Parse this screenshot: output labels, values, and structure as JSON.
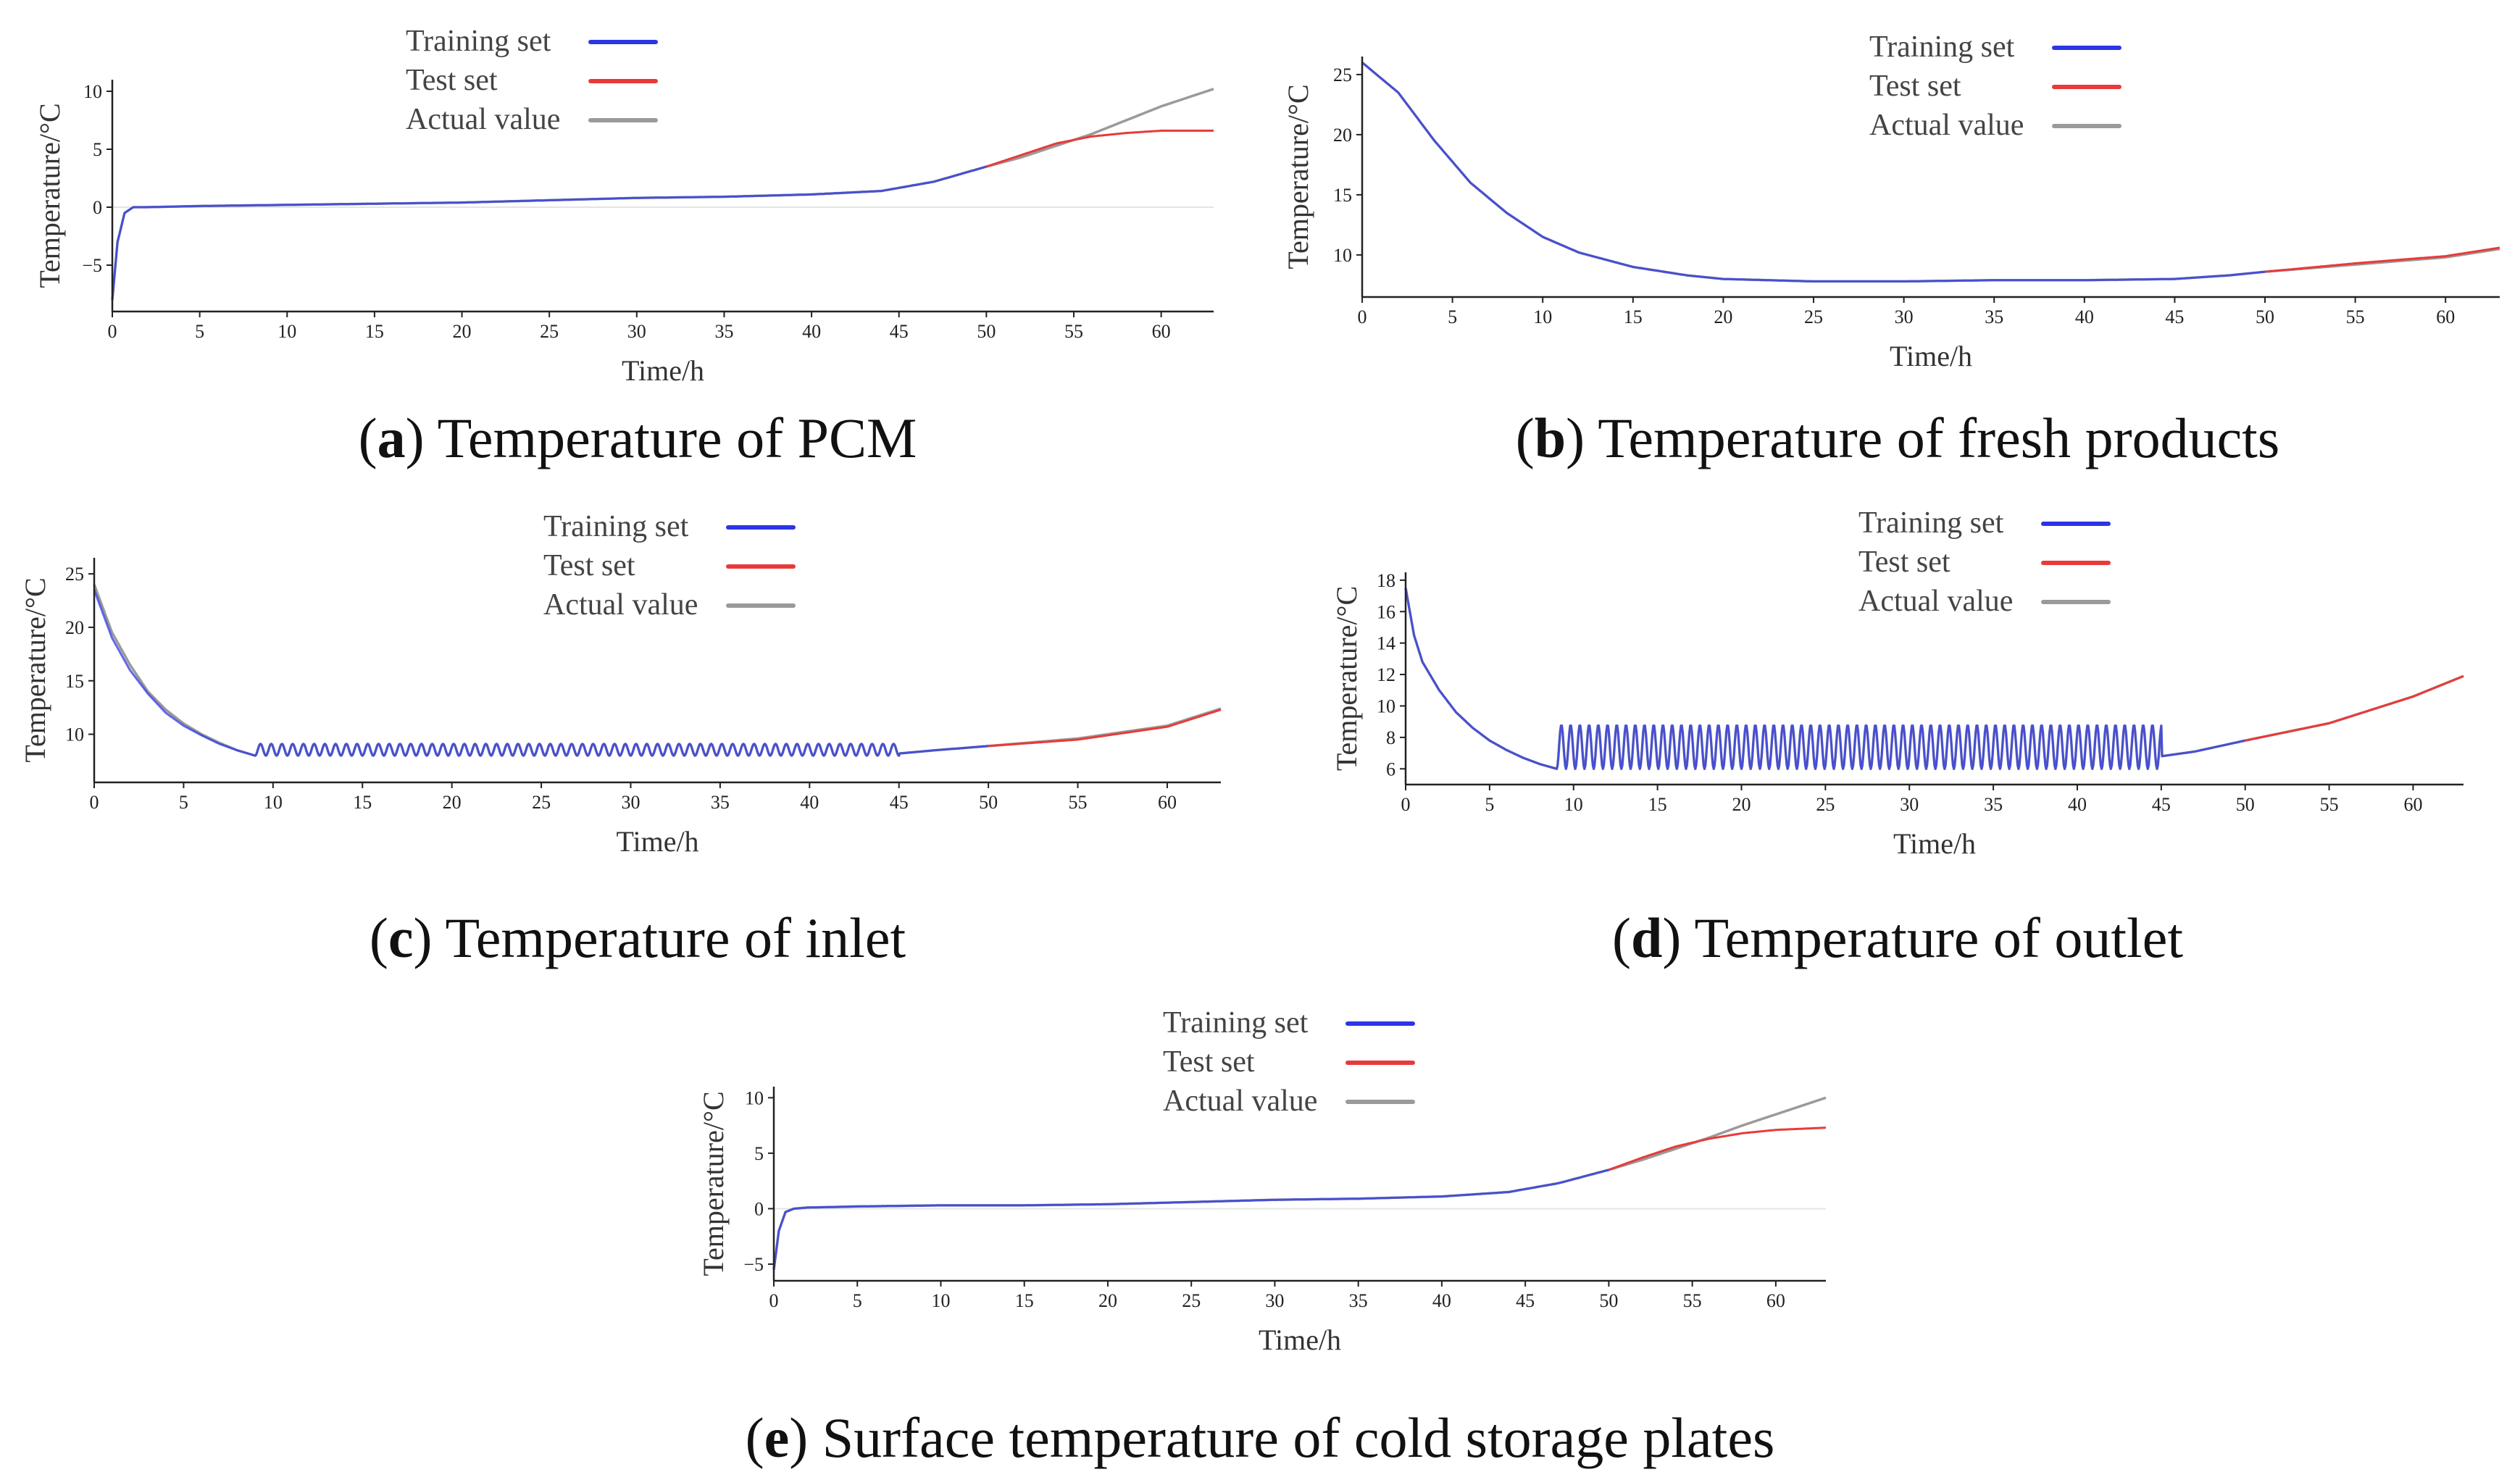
{
  "figure": {
    "panels": [
      {
        "id": "a",
        "caption_letter": "a",
        "caption_text": "Temperature of PCM",
        "chart_data": {
          "type": "line",
          "xlabel": "Time/h",
          "ylabel": "Temperature/°C",
          "xlim": [
            0,
            63
          ],
          "ylim": [
            -9,
            11
          ],
          "xticks": [
            0,
            5,
            10,
            15,
            20,
            25,
            30,
            35,
            40,
            45,
            50,
            55,
            60
          ],
          "yticks": [
            -5,
            0,
            5,
            10
          ],
          "ytick_labels": [
            "−5",
            "0",
            "5",
            "10"
          ],
          "zero_line": true,
          "legend": [
            "Training set",
            "Test set",
            "Actual value"
          ],
          "series": [
            {
              "name": "Actual value",
              "x": [
                0,
                0.3,
                0.7,
                1.2,
                2,
                5,
                10,
                15,
                20,
                25,
                30,
                35,
                40,
                44,
                47,
                50,
                52,
                54,
                56,
                58,
                60,
                63
              ],
              "values": [
                -8,
                -3,
                -0.5,
                0,
                0,
                0.1,
                0.2,
                0.3,
                0.4,
                0.6,
                0.8,
                0.9,
                1.1,
                1.4,
                2.2,
                3.5,
                4.3,
                5.3,
                6.3,
                7.5,
                8.7,
                10.2
              ]
            },
            {
              "name": "Training set",
              "x": [
                0,
                0.3,
                0.7,
                1.2,
                2,
                5,
                10,
                15,
                20,
                25,
                30,
                35,
                40,
                44,
                47,
                50
              ],
              "values": [
                -8,
                -3,
                -0.5,
                0,
                0,
                0.1,
                0.2,
                0.3,
                0.4,
                0.6,
                0.8,
                0.9,
                1.1,
                1.4,
                2.2,
                3.5
              ]
            },
            {
              "name": "Test set",
              "x": [
                50,
                52,
                54,
                56,
                58,
                60,
                63
              ],
              "values": [
                3.5,
                4.5,
                5.5,
                6.1,
                6.4,
                6.6,
                6.6
              ]
            }
          ]
        }
      },
      {
        "id": "b",
        "caption_letter": "b",
        "caption_text": "Temperature of fresh products",
        "chart_data": {
          "type": "line",
          "xlabel": "Time/h",
          "ylabel": "Temperature/°C",
          "xlim": [
            0,
            63
          ],
          "ylim": [
            6.5,
            26.5
          ],
          "xticks": [
            0,
            5,
            10,
            15,
            20,
            25,
            30,
            35,
            40,
            45,
            50,
            55,
            60
          ],
          "yticks": [
            10,
            15,
            20,
            25
          ],
          "ytick_labels": [
            "10",
            "15",
            "20",
            "25"
          ],
          "zero_line": false,
          "legend": [
            "Training set",
            "Test set",
            "Actual value"
          ],
          "series": [
            {
              "name": "Actual value",
              "x": [
                0,
                2,
                4,
                6,
                8,
                10,
                12,
                15,
                18,
                20,
                25,
                30,
                35,
                40,
                45,
                48,
                50,
                55,
                60,
                63
              ],
              "values": [
                26,
                23.5,
                19.5,
                16,
                13.5,
                11.5,
                10.2,
                9,
                8.3,
                8,
                7.8,
                7.8,
                7.9,
                7.9,
                8,
                8.3,
                8.6,
                9.2,
                9.8,
                10.5
              ]
            },
            {
              "name": "Training set",
              "x": [
                0,
                2,
                4,
                6,
                8,
                10,
                12,
                15,
                18,
                20,
                25,
                30,
                35,
                40,
                45,
                48,
                50
              ],
              "values": [
                26,
                23.5,
                19.5,
                16,
                13.5,
                11.5,
                10.2,
                9,
                8.3,
                8,
                7.8,
                7.8,
                7.9,
                7.9,
                8,
                8.3,
                8.6
              ]
            },
            {
              "name": "Test set",
              "x": [
                50,
                55,
                60,
                63
              ],
              "values": [
                8.6,
                9.3,
                9.9,
                10.6
              ]
            }
          ]
        }
      },
      {
        "id": "c",
        "caption_letter": "c",
        "caption_text": "Temperature of inlet",
        "chart_data": {
          "type": "line",
          "xlabel": "Time/h",
          "ylabel": "Temperature/°C",
          "xlim": [
            0,
            63
          ],
          "ylim": [
            5.5,
            26.5
          ],
          "xticks": [
            0,
            5,
            10,
            15,
            20,
            25,
            30,
            35,
            40,
            45,
            50,
            55,
            60
          ],
          "yticks": [
            10,
            15,
            20,
            25
          ],
          "ytick_labels": [
            "10",
            "15",
            "20",
            "25"
          ],
          "zero_line": false,
          "legend": [
            "Training set",
            "Test set",
            "Actual value"
          ],
          "oscillation": {
            "from": 9,
            "to": 45,
            "period": 0.6,
            "base": 8,
            "amplitude": 1.1
          },
          "series": [
            {
              "name": "Actual value",
              "x": [
                0,
                1,
                2,
                3,
                4,
                5,
                6,
                7,
                8,
                9,
                45,
                47,
                50,
                55,
                60,
                63
              ],
              "values": [
                24,
                19.5,
                16.5,
                14,
                12.3,
                11,
                10,
                9.2,
                8.5,
                8,
                8.2,
                8.5,
                8.9,
                9.6,
                10.8,
                12.4
              ]
            },
            {
              "name": "Training set",
              "x": [
                0,
                1,
                2,
                3,
                4,
                5,
                6,
                7,
                8,
                9,
                45,
                47,
                50
              ],
              "values": [
                23.5,
                19,
                16,
                13.8,
                12,
                10.8,
                9.9,
                9.1,
                8.5,
                8,
                8.2,
                8.5,
                8.9
              ]
            },
            {
              "name": "Test set",
              "x": [
                50,
                55,
                60,
                63
              ],
              "values": [
                8.9,
                9.5,
                10.7,
                12.3
              ]
            }
          ]
        }
      },
      {
        "id": "d",
        "caption_letter": "d",
        "caption_text": "Temperature of outlet",
        "chart_data": {
          "type": "line",
          "xlabel": "Time/h",
          "ylabel": "Temperature/°C",
          "xlim": [
            0,
            63
          ],
          "ylim": [
            5,
            18.5
          ],
          "xticks": [
            0,
            5,
            10,
            15,
            20,
            25,
            30,
            35,
            40,
            45,
            50,
            55,
            60
          ],
          "yticks": [
            6,
            8,
            10,
            12,
            14,
            16,
            18
          ],
          "ytick_labels": [
            "6",
            "8",
            "10",
            "12",
            "14",
            "16",
            "18"
          ],
          "zero_line": false,
          "legend": [
            "Training set",
            "Test set",
            "Actual value"
          ],
          "oscillation": {
            "from": 9,
            "to": 45,
            "period": 0.55,
            "base": 6,
            "amplitude": 2.8
          },
          "series": [
            {
              "name": "Actual value",
              "x": [
                0,
                0.5,
                1,
                2,
                3,
                4,
                5,
                6,
                7,
                8,
                9,
                45,
                47,
                50,
                55,
                60,
                63
              ],
              "values": [
                17.5,
                14.5,
                12.8,
                11,
                9.6,
                8.6,
                7.8,
                7.2,
                6.7,
                6.3,
                6,
                6.8,
                7.1,
                7.8,
                8.9,
                10.6,
                11.9
              ]
            },
            {
              "name": "Training set",
              "x": [
                0,
                0.5,
                1,
                2,
                3,
                4,
                5,
                6,
                7,
                8,
                9,
                45,
                47,
                50
              ],
              "values": [
                17.5,
                14.5,
                12.8,
                11,
                9.6,
                8.6,
                7.8,
                7.2,
                6.7,
                6.3,
                6,
                6.8,
                7.1,
                7.8
              ]
            },
            {
              "name": "Test set",
              "x": [
                50,
                55,
                60,
                63
              ],
              "values": [
                7.8,
                8.9,
                10.6,
                11.9
              ]
            }
          ]
        }
      },
      {
        "id": "e",
        "caption_letter": "e",
        "caption_text": "Surface temperature of cold storage plates",
        "chart_data": {
          "type": "line",
          "xlabel": "Time/h",
          "ylabel": "Temperature/°C",
          "xlim": [
            0,
            63
          ],
          "ylim": [
            -6.5,
            11
          ],
          "xticks": [
            0,
            5,
            10,
            15,
            20,
            25,
            30,
            35,
            40,
            45,
            50,
            55,
            60
          ],
          "yticks": [
            -5,
            0,
            5,
            10
          ],
          "ytick_labels": [
            "−5",
            "0",
            "5",
            "10"
          ],
          "zero_line": true,
          "legend": [
            "Training set",
            "Test set",
            "Actual value"
          ],
          "series": [
            {
              "name": "Actual value",
              "x": [
                0,
                0.3,
                0.7,
                1.2,
                2,
                5,
                10,
                15,
                20,
                25,
                30,
                35,
                40,
                44,
                47,
                50,
                52,
                54,
                56,
                58,
                60,
                63
              ],
              "values": [
                -5.5,
                -2,
                -0.3,
                0,
                0.1,
                0.2,
                0.3,
                0.3,
                0.4,
                0.6,
                0.8,
                0.9,
                1.1,
                1.5,
                2.3,
                3.5,
                4.4,
                5.4,
                6.4,
                7.5,
                8.5,
                10
              ]
            },
            {
              "name": "Training set",
              "x": [
                0,
                0.3,
                0.7,
                1.2,
                2,
                5,
                10,
                15,
                20,
                25,
                30,
                35,
                40,
                44,
                47,
                50
              ],
              "values": [
                -5.5,
                -2,
                -0.3,
                0,
                0.1,
                0.2,
                0.3,
                0.3,
                0.4,
                0.6,
                0.8,
                0.9,
                1.1,
                1.5,
                2.3,
                3.5
              ]
            },
            {
              "name": "Test set",
              "x": [
                50,
                52,
                54,
                56,
                58,
                60,
                63
              ],
              "values": [
                3.5,
                4.6,
                5.6,
                6.3,
                6.8,
                7.1,
                7.3
              ]
            }
          ]
        }
      }
    ],
    "colors": {
      "Training set": "#2b35e6",
      "Test set": "#e83a3a",
      "Actual value": "#9a9a9a",
      "axis": "#222222",
      "zero_line": "#e4e4e4"
    }
  }
}
